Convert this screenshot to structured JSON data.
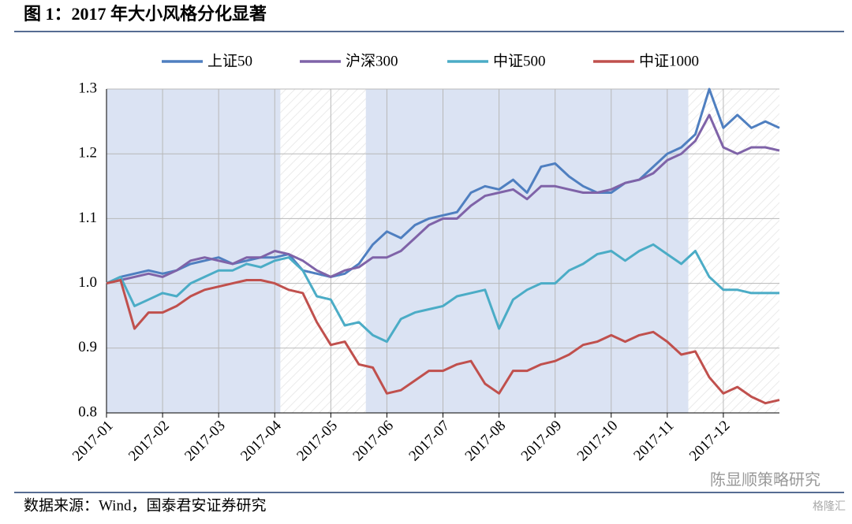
{
  "title": "图 1：2017 年大小风格分化显著",
  "source": "数据来源：Wind，国泰君安证券研究",
  "watermark": "陈显顺策略研究",
  "watermark2": "格隆汇",
  "chart_data": {
    "type": "line",
    "categories": [
      "2017-01",
      null,
      null,
      null,
      "2017-02",
      null,
      null,
      null,
      "2017-03",
      null,
      null,
      null,
      "2017-04",
      null,
      null,
      null,
      "2017-05",
      null,
      null,
      null,
      "2017-06",
      null,
      null,
      null,
      "2017-07",
      null,
      null,
      null,
      "2017-08",
      null,
      null,
      null,
      "2017-09",
      null,
      null,
      null,
      "2017-10",
      null,
      null,
      null,
      "2017-11",
      null,
      null,
      null,
      "2017-12",
      null,
      null,
      null,
      null
    ],
    "series": [
      {
        "name": "上证50",
        "color": "#4f7fc0",
        "values": [
          1.0,
          1.01,
          1.015,
          1.02,
          1.015,
          1.02,
          1.03,
          1.035,
          1.04,
          1.03,
          1.035,
          1.04,
          1.04,
          1.045,
          1.02,
          1.015,
          1.01,
          1.015,
          1.03,
          1.06,
          1.08,
          1.07,
          1.09,
          1.1,
          1.105,
          1.11,
          1.14,
          1.15,
          1.145,
          1.16,
          1.14,
          1.18,
          1.185,
          1.165,
          1.15,
          1.14,
          1.14,
          1.155,
          1.16,
          1.18,
          1.2,
          1.21,
          1.23,
          1.3,
          1.24,
          1.26,
          1.24,
          1.25,
          1.24
        ]
      },
      {
        "name": "沪深300",
        "color": "#7f63a8",
        "values": [
          1.0,
          1.005,
          1.01,
          1.015,
          1.01,
          1.02,
          1.035,
          1.04,
          1.035,
          1.03,
          1.04,
          1.04,
          1.05,
          1.045,
          1.035,
          1.02,
          1.01,
          1.02,
          1.025,
          1.04,
          1.04,
          1.05,
          1.07,
          1.09,
          1.1,
          1.1,
          1.12,
          1.135,
          1.14,
          1.145,
          1.13,
          1.15,
          1.15,
          1.145,
          1.14,
          1.14,
          1.145,
          1.155,
          1.16,
          1.17,
          1.19,
          1.2,
          1.22,
          1.26,
          1.21,
          1.2,
          1.21,
          1.21,
          1.205
        ]
      },
      {
        "name": "中证500",
        "color": "#4bacc6",
        "values": [
          1.0,
          1.01,
          0.965,
          0.975,
          0.985,
          0.98,
          1.0,
          1.01,
          1.02,
          1.02,
          1.03,
          1.025,
          1.035,
          1.04,
          1.02,
          0.98,
          0.975,
          0.935,
          0.94,
          0.92,
          0.91,
          0.945,
          0.955,
          0.96,
          0.965,
          0.98,
          0.985,
          0.99,
          0.93,
          0.975,
          0.99,
          1.0,
          1.0,
          1.02,
          1.03,
          1.045,
          1.05,
          1.035,
          1.05,
          1.06,
          1.045,
          1.03,
          1.05,
          1.01,
          0.99,
          0.99,
          0.985,
          0.985,
          0.985
        ]
      },
      {
        "name": "中证1000",
        "color": "#c0504d",
        "values": [
          1.0,
          1.005,
          0.93,
          0.955,
          0.955,
          0.965,
          0.98,
          0.99,
          0.995,
          1.0,
          1.005,
          1.005,
          1.0,
          0.99,
          0.985,
          0.94,
          0.905,
          0.91,
          0.875,
          0.87,
          0.83,
          0.835,
          0.85,
          0.865,
          0.865,
          0.875,
          0.88,
          0.845,
          0.83,
          0.865,
          0.865,
          0.875,
          0.88,
          0.89,
          0.905,
          0.91,
          0.92,
          0.91,
          0.92,
          0.925,
          0.91,
          0.89,
          0.895,
          0.855,
          0.83,
          0.84,
          0.825,
          0.815,
          0.82
        ]
      }
    ],
    "ylim": [
      0.8,
      1.3
    ],
    "yticks": [
      0.8,
      0.9,
      {
        "value": 1.0,
        "label": "1.0"
      },
      1.1,
      1.2,
      1.3
    ],
    "grid": true,
    "legend": "top",
    "highlight_spans": [
      [
        0,
        12.4
      ],
      [
        18.5,
        41.5
      ]
    ],
    "highlight_color": "#dbe3f3"
  }
}
